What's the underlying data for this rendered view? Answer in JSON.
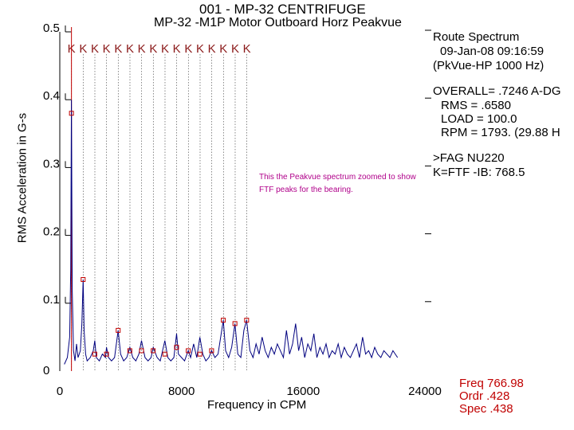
{
  "header": {
    "title_line1": "001 - MP-32 CENTRIFUGE",
    "title_line2": "MP-32 -M1P Motor Outboard Horz Peakvue"
  },
  "info_panel": {
    "route_spectrum": "Route Spectrum",
    "date": "09-Jan-08 09:16:59",
    "pkvue": "(PkVue-HP 1000 Hz)",
    "overall": "OVERALL= .7246 A-DG",
    "rms": "RMS = .6580",
    "load": "LOAD = 100.0",
    "rpm": "RPM = 1793. (29.88 H",
    "bearing": ">FAG NU220",
    "marker": "K=FTF -IB: 768.5"
  },
  "cursor_readout": {
    "freq": "Freq 766.98",
    "ordr": "Ordr .428",
    "spec": "Spec .438"
  },
  "annotation": "This the Peakvue spectrum zoomed to show FTF peaks for the bearing.",
  "colors": {
    "trace": "#00007f",
    "marker": "#c00000",
    "cursor": "#c00000",
    "annotation": "#b0008a"
  },
  "chart_data": {
    "type": "line",
    "xlabel": "Frequency in CPM",
    "ylabel": "RMS Acceleration in G-s",
    "xlim": [
      0,
      24000
    ],
    "ylim": [
      0,
      0.5
    ],
    "x_ticks": [
      "0",
      "8000",
      "16000",
      "24000"
    ],
    "y_ticks": [
      "0",
      "0.1",
      "0.2",
      "0.3",
      "0.4",
      "0.5"
    ],
    "ftf_marker_label": "K",
    "ftf_frequency": 768.5,
    "ftf_harmonics": 16,
    "cursor_x": 766.98,
    "series": [
      {
        "x": [
          300,
          500,
          650,
          720,
          767,
          820,
          900,
          1000,
          1100,
          1200,
          1350,
          1450,
          1534,
          1600,
          1700,
          1800,
          2000,
          2200,
          2301,
          2400,
          2600,
          2800,
          3000,
          3069,
          3200,
          3400,
          3600,
          3837,
          4000,
          4200,
          4400,
          4604,
          4800,
          5000,
          5200,
          5372,
          5600,
          5800,
          6000,
          6139,
          6400,
          6600,
          6907,
          7100,
          7300,
          7500,
          7675,
          7800,
          8000,
          8200,
          8442,
          8600,
          8800,
          9000,
          9209,
          9400,
          9600,
          9800,
          9977,
          10200,
          10400,
          10745,
          10900,
          11100,
          11300,
          11512,
          11700,
          11900,
          12100,
          12280,
          12500,
          12700,
          12900,
          13100,
          13300,
          13500,
          13700,
          13900,
          14100,
          14300,
          14500,
          14700,
          14900,
          15100,
          15300,
          15500,
          15700,
          15900,
          16100,
          16300,
          16500,
          16700,
          16900,
          17100,
          17300,
          17500,
          17700,
          17900,
          18100,
          18300,
          18500,
          18700,
          18900,
          19100,
          19300,
          19500,
          19700,
          19900,
          20100,
          20300,
          20500,
          20700,
          20900,
          21100,
          21300,
          21500,
          21700,
          21900,
          22200
        ],
        "y": [
          0.01,
          0.02,
          0.05,
          0.15,
          0.4,
          0.12,
          0.03,
          0.015,
          0.04,
          0.02,
          0.03,
          0.07,
          0.135,
          0.06,
          0.025,
          0.015,
          0.02,
          0.03,
          0.045,
          0.02,
          0.015,
          0.025,
          0.02,
          0.035,
          0.02,
          0.015,
          0.02,
          0.06,
          0.025,
          0.015,
          0.02,
          0.035,
          0.02,
          0.015,
          0.025,
          0.045,
          0.02,
          0.015,
          0.02,
          0.035,
          0.02,
          0.015,
          0.045,
          0.02,
          0.015,
          0.02,
          0.055,
          0.025,
          0.02,
          0.015,
          0.03,
          0.02,
          0.04,
          0.02,
          0.05,
          0.025,
          0.015,
          0.02,
          0.03,
          0.02,
          0.025,
          0.075,
          0.03,
          0.02,
          0.035,
          0.07,
          0.025,
          0.02,
          0.06,
          0.075,
          0.03,
          0.02,
          0.04,
          0.025,
          0.05,
          0.03,
          0.02,
          0.035,
          0.025,
          0.04,
          0.03,
          0.02,
          0.06,
          0.025,
          0.04,
          0.07,
          0.03,
          0.05,
          0.02,
          0.04,
          0.03,
          0.055,
          0.02,
          0.035,
          0.025,
          0.04,
          0.02,
          0.03,
          0.025,
          0.04,
          0.02,
          0.035,
          0.025,
          0.02,
          0.03,
          0.04,
          0.02,
          0.05,
          0.025,
          0.03,
          0.02,
          0.035,
          0.025,
          0.02,
          0.03,
          0.025,
          0.02,
          0.03,
          0.02
        ]
      }
    ],
    "markers": {
      "x": [
        767,
        1534,
        2301,
        3069,
        3837,
        4604,
        5372,
        6139,
        6907,
        7675,
        8442,
        9209,
        9977,
        10745,
        11512,
        12280
      ],
      "y": [
        0.38,
        0.135,
        0.025,
        0.025,
        0.06,
        0.03,
        0.03,
        0.03,
        0.025,
        0.035,
        0.03,
        0.025,
        0.03,
        0.075,
        0.07,
        0.075
      ]
    }
  }
}
